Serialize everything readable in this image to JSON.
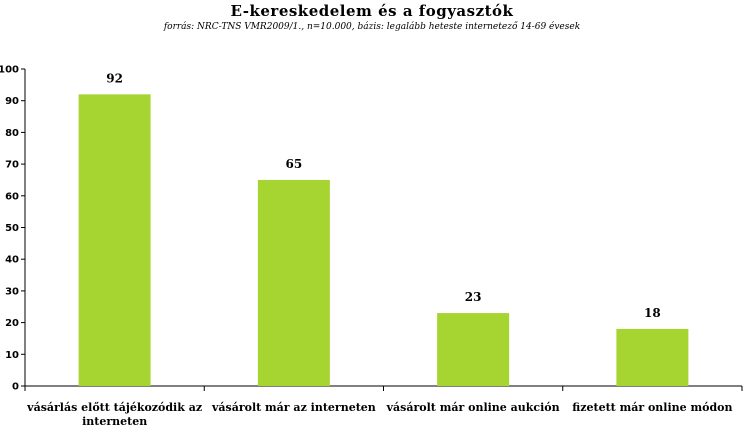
{
  "chart_data": {
    "type": "bar",
    "title": "E-kereskedelem és a fogyasztók",
    "subtitle": "forrás: NRC-TNS VMR2009/1., n=10.000, bázis: legalább heteste internetező 14-69 évesek",
    "categories": [
      [
        "vásárlás előtt tájékozódik az",
        "interneten"
      ],
      [
        "vásárolt már az interneten"
      ],
      [
        "vásárolt már online aukción"
      ],
      [
        "fizetett már online módon"
      ]
    ],
    "values": [
      92,
      65,
      23,
      18
    ],
    "ylim": [
      0,
      100
    ],
    "yticks": [
      0,
      10,
      20,
      30,
      40,
      50,
      60,
      70,
      80,
      90,
      100
    ],
    "grid": false,
    "bar_color": "#a6d531",
    "xlabel": "",
    "ylabel": ""
  }
}
